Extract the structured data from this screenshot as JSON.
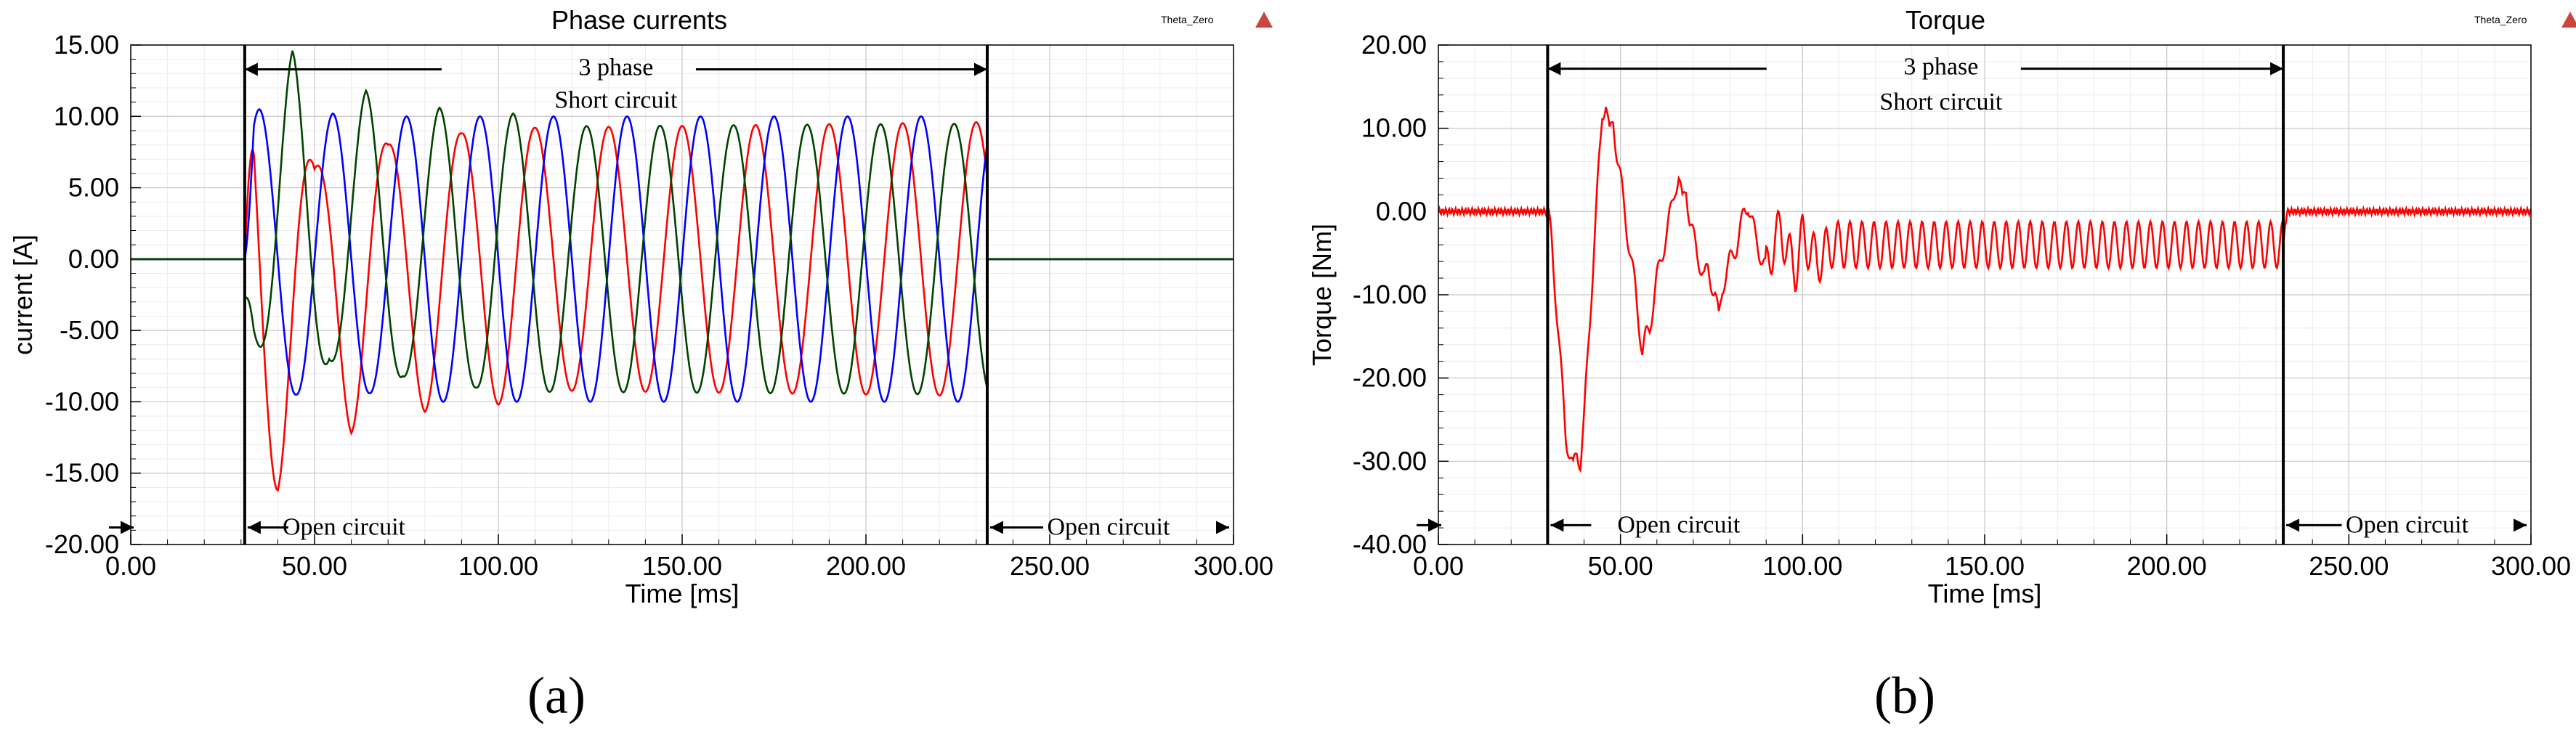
{
  "chart_data": [
    {
      "type": "line",
      "panel_label": "(a)",
      "title": "Phase currents",
      "logo_text": "Theta_Zero",
      "xlabel": "Time [ms]",
      "ylabel": "current [A]",
      "xlim": [
        0,
        300
      ],
      "ylim": [
        -20,
        15
      ],
      "x_ticks": [
        0,
        50,
        100,
        150,
        200,
        250,
        300
      ],
      "x_tick_labels": [
        "0.00",
        "50.00",
        "100.00",
        "150.00",
        "200.00",
        "250.00",
        "300.00"
      ],
      "y_ticks": [
        15,
        10,
        5,
        0,
        -5,
        -10,
        -15,
        -20
      ],
      "y_tick_labels": [
        "15.00",
        "10.00",
        "5.00",
        "0.00",
        "-5.00",
        "-10.00",
        "-15.00",
        "-20.00"
      ],
      "grid": true,
      "fault_start": 31,
      "fault_end": 233,
      "series": [
        {
          "color": "#ff0000",
          "peaks": [
            [
              40,
              -16.2
            ],
            [
              50,
              6.3
            ],
            [
              60,
              -12.2
            ],
            [
              70,
              8.0
            ],
            [
              80,
              -10.7
            ],
            [
              90,
              8.8
            ],
            [
              100,
              -10.2
            ],
            [
              110,
              9.2
            ],
            [
              233,
              9.6
            ]
          ]
        },
        {
          "color": "#0000ff",
          "peaks": [
            [
              35,
              10.5
            ],
            [
              45,
              -9.5
            ],
            [
              55,
              10.2
            ],
            [
              65,
              -9.4
            ],
            [
              75,
              10.0
            ],
            [
              233,
              10.0
            ]
          ]
        },
        {
          "color": "#004400",
          "peaks": [
            [
              31,
              -2.8
            ],
            [
              44,
              14.6
            ],
            [
              54,
              -7.0
            ],
            [
              64,
              11.8
            ],
            [
              74,
              -8.2
            ],
            [
              84,
              10.6
            ],
            [
              94,
              -9.0
            ],
            [
              104,
              10.2
            ],
            [
              114,
              -9.3
            ],
            [
              233,
              -9.5
            ]
          ]
        }
      ],
      "annotations": [
        {
          "text": "3 phase",
          "x": 132,
          "y": 13.5
        },
        {
          "text": "Short circuit",
          "x": 132,
          "y": 11.2
        },
        {
          "text": "Open circuit",
          "x": 58,
          "y": -18.7
        },
        {
          "text": "Open circuit",
          "x": 266,
          "y": -18.7
        }
      ]
    },
    {
      "type": "line",
      "panel_label": "(b)",
      "title": "Torque",
      "logo_text": "Theta_Zero",
      "xlabel": "Time [ms]",
      "ylabel": "Torque [Nm]",
      "xlim": [
        0,
        300
      ],
      "ylim": [
        -40,
        20
      ],
      "x_ticks": [
        0,
        50,
        100,
        150,
        200,
        250,
        300
      ],
      "x_tick_labels": [
        "0.00",
        "50.00",
        "100.00",
        "150.00",
        "200.00",
        "250.00",
        "300.00"
      ],
      "y_ticks": [
        20,
        10,
        0,
        -10,
        -20,
        -30,
        -40
      ],
      "y_tick_labels": [
        "20.00",
        "10.00",
        "0.00",
        "-10.00",
        "-20.00",
        "-30.00",
        "-40.00"
      ],
      "grid": true,
      "fault_start": 30,
      "fault_end": 232,
      "series": [
        {
          "color": "#ff0000",
          "points": [
            [
              0,
              0
            ],
            [
              30,
              0
            ],
            [
              31,
              -3
            ],
            [
              33,
              -15
            ],
            [
              35,
              -27
            ],
            [
              37,
              -31
            ],
            [
              38,
              -29
            ],
            [
              39,
              -30
            ],
            [
              40,
              -25
            ],
            [
              42,
              -10
            ],
            [
              44,
              5
            ],
            [
              45,
              12
            ],
            [
              46,
              13
            ],
            [
              47,
              9
            ],
            [
              48,
              11
            ],
            [
              49,
              7
            ],
            [
              50,
              4
            ],
            [
              52,
              -3
            ],
            [
              54,
              -9
            ],
            [
              55,
              -13
            ],
            [
              56,
              -17
            ],
            [
              57,
              -15
            ],
            [
              58,
              -14
            ],
            [
              60,
              -8
            ],
            [
              63,
              -2
            ],
            [
              65,
              3
            ],
            [
              66,
              4
            ],
            [
              67,
              1
            ],
            [
              68,
              3
            ],
            [
              69,
              -1
            ],
            [
              71,
              -5
            ],
            [
              73,
              -8
            ],
            [
              74,
              -7
            ],
            [
              76,
              -10
            ],
            [
              77,
              -13
            ],
            [
              78,
              -9
            ],
            [
              80,
              -6
            ],
            [
              82,
              -4
            ],
            [
              84,
              0
            ],
            [
              85,
              1
            ],
            [
              86,
              -1
            ],
            [
              87,
              -3
            ],
            [
              89,
              -6
            ],
            [
              90,
              -7
            ],
            [
              92,
              -4
            ],
            [
              94,
              -2
            ],
            [
              96,
              -5
            ],
            [
              98,
              -7
            ],
            [
              100,
              -3
            ],
            [
              104,
              -6
            ],
            [
              108,
              -4
            ],
            [
              232,
              -4
            ],
            [
              233,
              0
            ],
            [
              300,
              0
            ]
          ]
        }
      ],
      "annotations": [
        {
          "text": "3 phase",
          "x": 138,
          "y": 17.5
        },
        {
          "text": "Short circuit",
          "x": 138,
          "y": 13.3
        },
        {
          "text": "Open circuit",
          "x": 66,
          "y": -37.5
        },
        {
          "text": "Open circuit",
          "x": 266,
          "y": -37.5
        }
      ]
    }
  ]
}
